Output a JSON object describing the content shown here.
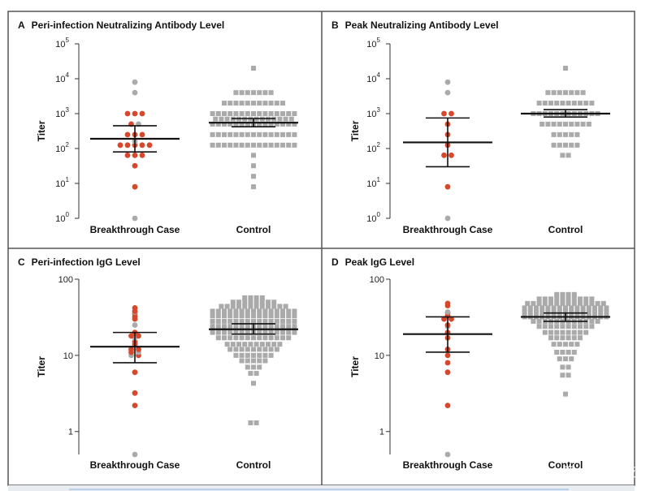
{
  "watermark": "雪球: DeepTech深科技",
  "colors": {
    "breakthrough": "#d7472c",
    "breakthrough_grey": "#aaaaaa",
    "control": "#aaaaaa",
    "stat": "#111111"
  },
  "chart_data": [
    {
      "id": "A",
      "letter": "A",
      "title": "Peri-infection Neutralizing Antibody Level",
      "type": "scatter",
      "scale": "log",
      "ylim": [
        1,
        100000
      ],
      "ylabel": "Titer",
      "ticks": [
        {
          "v": 1,
          "b": "10",
          "e": "0"
        },
        {
          "v": 10,
          "b": "10",
          "e": "1"
        },
        {
          "v": 100,
          "b": "10",
          "e": "2"
        },
        {
          "v": 1000,
          "b": "10",
          "e": "3"
        },
        {
          "v": 10000,
          "b": "10",
          "e": "4"
        },
        {
          "v": 100000,
          "b": "10",
          "e": "5"
        }
      ],
      "categories": [
        "Breakthrough Case",
        "Control"
      ],
      "breakthrough": {
        "mean": 190,
        "ci": [
          80,
          450
        ],
        "points": [
          [
            8000,
            "g"
          ],
          [
            4000,
            "g"
          ],
          [
            1000,
            "r"
          ],
          [
            1000,
            "r"
          ],
          [
            1000,
            "r"
          ],
          [
            500,
            "r"
          ],
          [
            500,
            "g"
          ],
          [
            250,
            "r"
          ],
          [
            250,
            "r"
          ],
          [
            250,
            "r"
          ],
          [
            160,
            "g"
          ],
          [
            125,
            "r"
          ],
          [
            125,
            "r"
          ],
          [
            125,
            "r"
          ],
          [
            125,
            "r"
          ],
          [
            125,
            "r"
          ],
          [
            64,
            "r"
          ],
          [
            64,
            "r"
          ],
          [
            64,
            "r"
          ],
          [
            32,
            "r"
          ],
          [
            8,
            "r"
          ],
          [
            1,
            "g"
          ]
        ]
      },
      "control": {
        "mean": 550,
        "ci": [
          420,
          720
        ],
        "rows": [
          [
            20000,
            1
          ],
          [
            4000,
            7
          ],
          [
            2000,
            11
          ],
          [
            1000,
            15
          ],
          [
            700,
            14
          ],
          [
            500,
            15
          ],
          [
            250,
            15
          ],
          [
            125,
            15
          ],
          [
            64,
            1
          ],
          [
            32,
            1
          ],
          [
            16,
            1
          ],
          [
            8,
            1
          ]
        ]
      }
    },
    {
      "id": "B",
      "letter": "B",
      "title": "Peak Neutralizing Antibody Level",
      "type": "scatter",
      "scale": "log",
      "ylim": [
        1,
        100000
      ],
      "ylabel": "Titer",
      "ticks": [
        {
          "v": 1,
          "b": "10",
          "e": "0"
        },
        {
          "v": 10,
          "b": "10",
          "e": "1"
        },
        {
          "v": 100,
          "b": "10",
          "e": "2"
        },
        {
          "v": 1000,
          "b": "10",
          "e": "3"
        },
        {
          "v": 10000,
          "b": "10",
          "e": "4"
        },
        {
          "v": 100000,
          "b": "10",
          "e": "5"
        }
      ],
      "categories": [
        "Breakthrough Case",
        "Control"
      ],
      "breakthrough": {
        "mean": 150,
        "ci": [
          30,
          750
        ],
        "points": [
          [
            8000,
            "g"
          ],
          [
            4000,
            "g"
          ],
          [
            1000,
            "r"
          ],
          [
            1000,
            "r"
          ],
          [
            500,
            "r"
          ],
          [
            250,
            "r"
          ],
          [
            125,
            "r"
          ],
          [
            64,
            "r"
          ],
          [
            64,
            "r"
          ],
          [
            8,
            "r"
          ],
          [
            1,
            "g"
          ]
        ]
      },
      "control": {
        "mean": 1000,
        "ci": [
          800,
          1300
        ],
        "rows": [
          [
            20000,
            1
          ],
          [
            4000,
            7
          ],
          [
            2000,
            10
          ],
          [
            1000,
            12
          ],
          [
            500,
            9
          ],
          [
            250,
            5
          ],
          [
            125,
            5
          ],
          [
            64,
            2
          ]
        ]
      }
    },
    {
      "id": "C",
      "letter": "C",
      "title": "Peri-infection IgG Level",
      "type": "scatter",
      "scale": "log",
      "ylim": [
        0.5,
        100
      ],
      "ylabel": "Titer",
      "ticks": [
        {
          "v": 1,
          "b": "1",
          "e": ""
        },
        {
          "v": 10,
          "b": "10",
          "e": ""
        },
        {
          "v": 100,
          "b": "100",
          "e": ""
        }
      ],
      "categories": [
        "Breakthrough Case",
        "Control"
      ],
      "breakthrough": {
        "mean": 13,
        "ci": [
          8,
          20
        ],
        "points": [
          [
            42,
            "r"
          ],
          [
            38,
            "r"
          ],
          [
            37,
            "g"
          ],
          [
            35,
            "r"
          ],
          [
            32,
            "r"
          ],
          [
            30,
            "r"
          ],
          [
            25,
            "g"
          ],
          [
            20,
            "r"
          ],
          [
            18,
            "r"
          ],
          [
            18,
            "r"
          ],
          [
            17,
            "g"
          ],
          [
            15,
            "r"
          ],
          [
            14,
            "r"
          ],
          [
            12,
            "r"
          ],
          [
            12,
            "r"
          ],
          [
            11,
            "r"
          ],
          [
            11,
            "g"
          ],
          [
            10,
            "g"
          ],
          [
            10,
            "r"
          ],
          [
            6,
            "r"
          ],
          [
            3.2,
            "r"
          ],
          [
            2.2,
            "r"
          ],
          [
            0.5,
            "g"
          ]
        ]
      },
      "control": {
        "mean": 22,
        "ci": [
          19,
          26
        ],
        "rows": [
          [
            57,
            4
          ],
          [
            50,
            8
          ],
          [
            44,
            12
          ],
          [
            38,
            15
          ],
          [
            33,
            15
          ],
          [
            28,
            15
          ],
          [
            24,
            15
          ],
          [
            20,
            15
          ],
          [
            17,
            13
          ],
          [
            14,
            10
          ],
          [
            12,
            9
          ],
          [
            10,
            7
          ],
          [
            8.5,
            5
          ],
          [
            7,
            3
          ],
          [
            5.8,
            2
          ],
          [
            4.3,
            1
          ],
          [
            1.3,
            2
          ]
        ]
      }
    },
    {
      "id": "D",
      "letter": "D",
      "title": "Peak IgG Level",
      "type": "scatter",
      "scale": "log",
      "ylim": [
        0.5,
        100
      ],
      "ylabel": "Titer",
      "ticks": [
        {
          "v": 1,
          "b": "1",
          "e": ""
        },
        {
          "v": 10,
          "b": "10",
          "e": ""
        },
        {
          "v": 100,
          "b": "100",
          "e": ""
        }
      ],
      "categories": [
        "Breakthrough Case",
        "Control"
      ],
      "breakthrough": {
        "mean": 19,
        "ci": [
          11,
          32
        ],
        "points": [
          [
            48,
            "r"
          ],
          [
            45,
            "r"
          ],
          [
            37,
            "g"
          ],
          [
            36,
            "r"
          ],
          [
            33,
            "r"
          ],
          [
            30,
            "r"
          ],
          [
            30,
            "r"
          ],
          [
            25,
            "r"
          ],
          [
            24,
            "g"
          ],
          [
            20,
            "r"
          ],
          [
            17,
            "r"
          ],
          [
            12,
            "r"
          ],
          [
            10,
            "r"
          ],
          [
            8,
            "r"
          ],
          [
            6,
            "r"
          ],
          [
            2.2,
            "r"
          ],
          [
            0.5,
            "g"
          ]
        ]
      },
      "control": {
        "mean": 32,
        "ci": [
          28,
          36
        ],
        "rows": [
          [
            63,
            4
          ],
          [
            55,
            10
          ],
          [
            48,
            14
          ],
          [
            42,
            15
          ],
          [
            37,
            15
          ],
          [
            32,
            15
          ],
          [
            28,
            12
          ],
          [
            24,
            10
          ],
          [
            20,
            8
          ],
          [
            17,
            6
          ],
          [
            14,
            5
          ],
          [
            11,
            4
          ],
          [
            9,
            3
          ],
          [
            7,
            2
          ],
          [
            5.5,
            2
          ],
          [
            3.1,
            1
          ]
        ]
      }
    }
  ]
}
